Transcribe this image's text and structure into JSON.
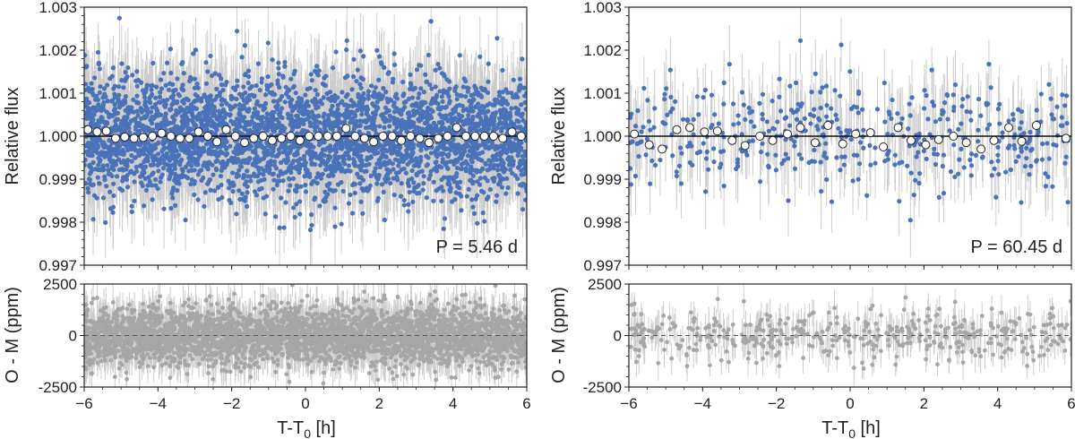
{
  "chart_data": [
    {
      "type": "scatter",
      "panel": "top-left",
      "ylabel": "Relative flux",
      "ylim": [
        0.997,
        1.003
      ],
      "xlim": [
        -6,
        6
      ],
      "yticks": [
        0.997,
        0.998,
        0.999,
        1.0,
        1.001,
        1.002,
        1.003
      ],
      "ytick_labels": [
        "0.997",
        "0.998",
        "0.999",
        "1.000",
        "1.001",
        "1.002",
        "1.003"
      ],
      "annotation": "P = 5.46 d",
      "model_value": 1.0,
      "binned": {
        "x": [
          -5.9,
          -5.65,
          -5.4,
          -5.15,
          -4.9,
          -4.65,
          -4.4,
          -4.15,
          -3.9,
          -3.65,
          -3.4,
          -3.15,
          -2.9,
          -2.65,
          -2.4,
          -2.15,
          -1.9,
          -1.65,
          -1.4,
          -1.15,
          -0.9,
          -0.65,
          -0.4,
          -0.15,
          0.1,
          0.35,
          0.6,
          0.85,
          1.1,
          1.35,
          1.6,
          1.85,
          2.1,
          2.35,
          2.6,
          2.85,
          3.1,
          3.35,
          3.6,
          3.85,
          4.1,
          4.35,
          4.6,
          4.85,
          5.1,
          5.35,
          5.6,
          5.85
        ],
        "y": [
          1.00015,
          1.0001,
          1.00012,
          0.99995,
          0.99998,
          0.99995,
          0.99997,
          1.0,
          1.00007,
          1.0,
          0.99995,
          0.99995,
          1.0001,
          1.0,
          0.99987,
          1.00015,
          1.0,
          0.99985,
          0.99995,
          1.0,
          0.9999,
          0.99995,
          1.0,
          0.9999,
          1.0,
          1.0,
          1.0,
          1.0,
          1.00018,
          1.0,
          0.99995,
          0.99987,
          1.0,
          1.0,
          0.9999,
          1.0,
          0.99995,
          0.99985,
          0.99995,
          1.0,
          1.0002,
          1.0,
          1.0,
          1.0,
          1.0,
          0.99995,
          1.0001,
          1.0
        ]
      },
      "scatter": {
        "n_points": 3600,
        "sigma_ppm": 700,
        "color": "#4a72b8",
        "errorbar_color": "#cccccc"
      }
    },
    {
      "type": "scatter",
      "panel": "bottom-left",
      "ylabel": "O - M (ppm)",
      "xlabel": "T-T0 [h]",
      "ylim": [
        -2500,
        2500
      ],
      "xlim": [
        -6,
        6
      ],
      "yticks": [
        -2500,
        0,
        2500
      ],
      "ytick_labels": [
        "-2500",
        "0",
        "2500"
      ],
      "xticks": [
        -6,
        -4,
        -2,
        0,
        2,
        4,
        6
      ],
      "xtick_labels": [
        "-6",
        "-4",
        "-2",
        "0",
        "2",
        "4",
        "6"
      ],
      "scatter": {
        "n_points": 3600,
        "sigma_ppm": 700,
        "color": "#a6a6a6",
        "errorbar_color": "#cccccc"
      }
    },
    {
      "type": "scatter",
      "panel": "top-right",
      "ylabel": "Relative flux",
      "ylim": [
        0.997,
        1.003
      ],
      "xlim": [
        -6,
        6
      ],
      "yticks": [
        0.997,
        0.998,
        0.999,
        1.0,
        1.001,
        1.002,
        1.003
      ],
      "ytick_labels": [
        "0.997",
        "0.998",
        "0.999",
        "1.000",
        "1.001",
        "1.002",
        "1.003"
      ],
      "annotation": "P = 60.45 d",
      "model_value": 1.0,
      "binned": {
        "x": [
          -5.85,
          -5.45,
          -5.1,
          -4.7,
          -4.35,
          -3.95,
          -3.6,
          -3.2,
          -2.85,
          -2.45,
          -2.1,
          -1.7,
          -1.35,
          -0.95,
          -0.6,
          -0.2,
          0.15,
          0.55,
          0.9,
          1.3,
          1.65,
          2.05,
          2.4,
          2.8,
          3.15,
          3.55,
          3.9,
          4.3,
          4.65,
          5.05,
          5.85
        ],
        "y": [
          1.00005,
          0.9998,
          0.9997,
          1.00015,
          1.0002,
          1.0001,
          1.00012,
          0.9999,
          0.99978,
          1.0,
          0.9999,
          1.00005,
          1.0002,
          0.99985,
          1.00025,
          0.99982,
          1.00005,
          1.00008,
          0.99975,
          1.0002,
          0.9999,
          0.9998,
          0.99992,
          1.0,
          0.99985,
          0.9997,
          0.9999,
          1.0002,
          0.99988,
          1.00025,
          0.99995
        ]
      },
      "scatter": {
        "n_points": 460,
        "sigma_ppm": 650,
        "color": "#4a72b8",
        "errorbar_color": "#cccccc"
      }
    },
    {
      "type": "scatter",
      "panel": "bottom-right",
      "ylabel": "O - M (ppm)",
      "xlabel": "T-T0 [h]",
      "ylim": [
        -2500,
        2500
      ],
      "xlim": [
        -6,
        6
      ],
      "yticks": [
        -2500,
        0,
        2500
      ],
      "ytick_labels": [
        "-2500",
        "0",
        "2500"
      ],
      "xticks": [
        -6,
        -4,
        -2,
        0,
        2,
        4,
        6
      ],
      "xtick_labels": [
        "-6",
        "-4",
        "-2",
        "0",
        "2",
        "4",
        "6"
      ],
      "scatter": {
        "n_points": 460,
        "sigma_ppm": 650,
        "color": "#a6a6a6",
        "errorbar_color": "#cccccc"
      }
    }
  ],
  "xlabel_text": "T-T",
  "xlabel_sub": "0",
  "xlabel_unit": " [h]"
}
